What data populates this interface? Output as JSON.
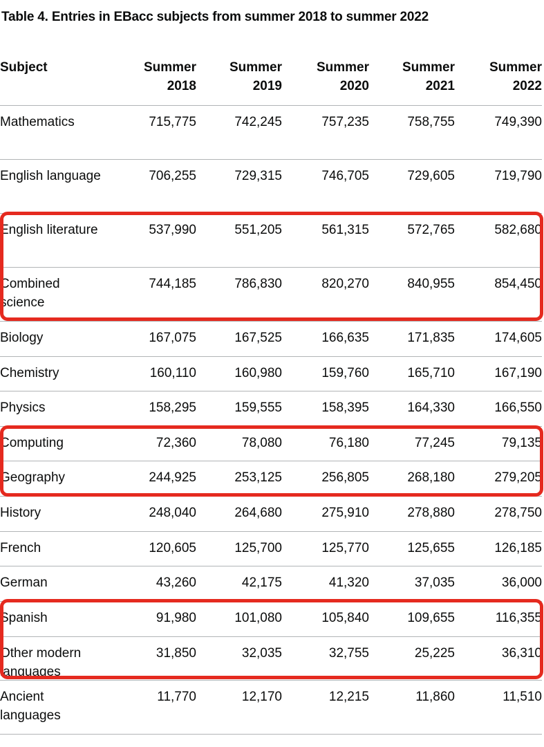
{
  "caption": "Table 4. Entries in EBacc subjects from summer 2018 to summer 2022",
  "columns": [
    "Subject",
    "Summer 2018",
    "Summer 2019",
    "Summer 2020",
    "Summer 2021",
    "Summer 2022"
  ],
  "rows": [
    {
      "subject": "Mathematics",
      "values": [
        "715,775",
        "742,245",
        "757,235",
        "758,755",
        "749,390"
      ]
    },
    {
      "subject": "English language",
      "values": [
        "706,255",
        "729,315",
        "746,705",
        "729,605",
        "719,790"
      ]
    },
    {
      "subject": "English literature",
      "values": [
        "537,990",
        "551,205",
        "561,315",
        "572,765",
        "582,680"
      ]
    },
    {
      "subject": "Combined science",
      "values": [
        "744,185",
        "786,830",
        "820,270",
        "840,955",
        "854,450"
      ]
    },
    {
      "subject": "Biology",
      "values": [
        "167,075",
        "167,525",
        "166,635",
        "171,835",
        "174,605"
      ]
    },
    {
      "subject": "Chemistry",
      "values": [
        "160,110",
        "160,980",
        "159,760",
        "165,710",
        "167,190"
      ]
    },
    {
      "subject": "Physics",
      "values": [
        "158,295",
        "159,555",
        "158,395",
        "164,330",
        "166,550"
      ]
    },
    {
      "subject": "Computing",
      "values": [
        "72,360",
        "78,080",
        "76,180",
        "77,245",
        "79,135"
      ]
    },
    {
      "subject": "Geography",
      "values": [
        "244,925",
        "253,125",
        "256,805",
        "268,180",
        "279,205"
      ]
    },
    {
      "subject": "History",
      "values": [
        "248,040",
        "264,680",
        "275,910",
        "278,880",
        "278,750"
      ]
    },
    {
      "subject": "French",
      "values": [
        "120,605",
        "125,700",
        "125,770",
        "125,655",
        "126,185"
      ]
    },
    {
      "subject": "German",
      "values": [
        "43,260",
        "42,175",
        "41,320",
        "37,035",
        "36,000"
      ]
    },
    {
      "subject": "Spanish",
      "values": [
        "91,980",
        "101,080",
        "105,840",
        "109,655",
        "116,355"
      ]
    },
    {
      "subject": "Other modern languages",
      "values": [
        "31,850",
        "32,035",
        "32,755",
        "25,225",
        "36,310"
      ]
    },
    {
      "subject": "Ancient languages",
      "values": [
        "11,770",
        "12,170",
        "12,215",
        "11,860",
        "11,510"
      ]
    }
  ],
  "highlight_color": "#e52a1f"
}
